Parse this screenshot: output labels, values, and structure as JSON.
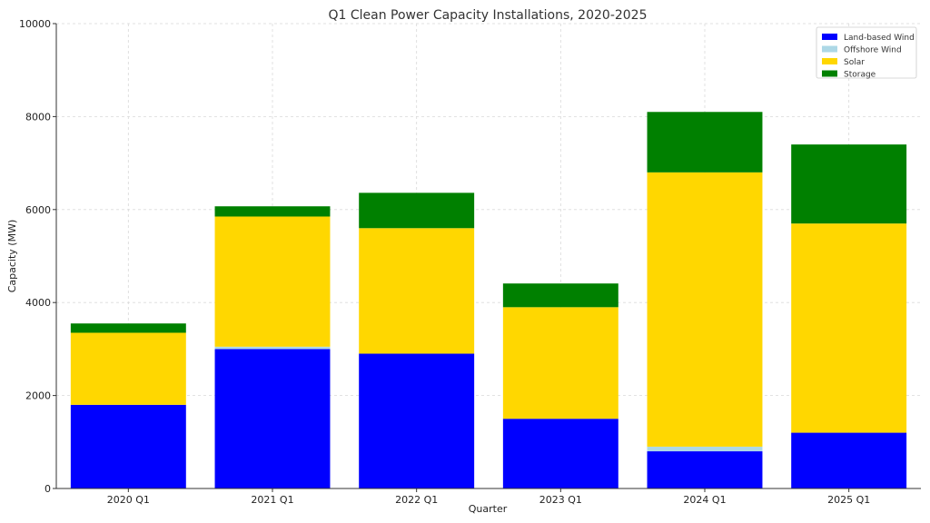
{
  "chart_data": {
    "type": "bar",
    "stacked": true,
    "title": "Q1 Clean Power Capacity Installations, 2020-2025",
    "xlabel": "Quarter",
    "ylabel": "Capacity (MW)",
    "categories": [
      "2020 Q1",
      "2021 Q1",
      "2022 Q1",
      "2023 Q1",
      "2024 Q1",
      "2025 Q1"
    ],
    "series": [
      {
        "name": "Land-based Wind",
        "color": "#0000ff",
        "values": [
          1800,
          3000,
          2900,
          1500,
          800,
          1200
        ]
      },
      {
        "name": "Offshore Wind",
        "color": "#add8e6",
        "values": [
          0,
          50,
          0,
          0,
          100,
          0
        ]
      },
      {
        "name": "Solar",
        "color": "#ffd700",
        "values": [
          1550,
          2800,
          2700,
          2400,
          5900,
          4500
        ]
      },
      {
        "name": "Storage",
        "color": "#008000",
        "values": [
          200,
          220,
          760,
          510,
          1300,
          1700
        ]
      }
    ],
    "ylim": [
      0,
      10000
    ],
    "yticks": [
      0,
      2000,
      4000,
      6000,
      8000,
      10000
    ],
    "grid": true,
    "legend_position": "top-right"
  }
}
